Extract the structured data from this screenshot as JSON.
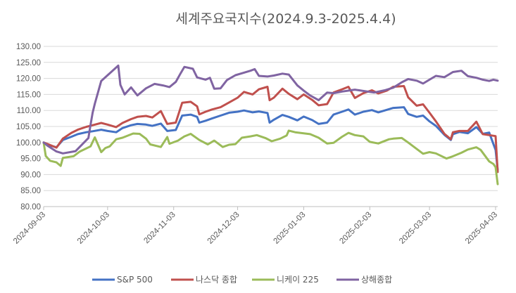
{
  "chart_data": {
    "type": "line",
    "title": "세계주요국지수(2024.9.3-2025.4.4)",
    "xlabel": "",
    "ylabel": "",
    "ylim": [
      80,
      130
    ],
    "yticks": [
      "80.00",
      "85.00",
      "90.00",
      "95.00",
      "100.00",
      "105.00",
      "110.00",
      "115.00",
      "120.00",
      "125.00",
      "130.00"
    ],
    "xlim": [
      "2024-09-03",
      "2025-04-04"
    ],
    "xticks": [
      "2024-09-03",
      "2024-10-03",
      "2024-11-03",
      "2024-12-03",
      "2025-01-03",
      "2025-02-03",
      "2025-03-03",
      "2025-04-03"
    ],
    "grid": "horizontal",
    "legend": "bottom",
    "series": [
      {
        "name": "S&P 500",
        "color": "#4472C4",
        "points": [
          [
            "2024-09-03",
            100.0
          ],
          [
            "2024-09-05",
            99.2
          ],
          [
            "2024-09-09",
            98.5
          ],
          [
            "2024-09-12",
            100.8
          ],
          [
            "2024-09-16",
            101.8
          ],
          [
            "2024-09-19",
            102.6
          ],
          [
            "2024-09-23",
            103.2
          ],
          [
            "2024-09-26",
            103.5
          ],
          [
            "2024-09-30",
            104.0
          ],
          [
            "2024-10-03",
            103.6
          ],
          [
            "2024-10-07",
            103.2
          ],
          [
            "2024-10-10",
            104.5
          ],
          [
            "2024-10-14",
            105.4
          ],
          [
            "2024-10-17",
            105.8
          ],
          [
            "2024-10-21",
            105.6
          ],
          [
            "2024-10-24",
            105.2
          ],
          [
            "2024-10-28",
            105.9
          ],
          [
            "2024-10-31",
            103.6
          ],
          [
            "2024-11-04",
            103.9
          ],
          [
            "2024-11-07",
            108.4
          ],
          [
            "2024-11-11",
            108.7
          ],
          [
            "2024-11-14",
            108.0
          ],
          [
            "2024-11-15",
            106.2
          ],
          [
            "2024-11-18",
            106.8
          ],
          [
            "2024-11-21",
            107.5
          ],
          [
            "2024-11-25",
            108.4
          ],
          [
            "2024-11-29",
            109.3
          ],
          [
            "2024-12-03",
            109.6
          ],
          [
            "2024-12-06",
            110.0
          ],
          [
            "2024-12-10",
            109.4
          ],
          [
            "2024-12-13",
            109.7
          ],
          [
            "2024-12-17",
            109.2
          ],
          [
            "2024-12-18",
            106.2
          ],
          [
            "2024-12-20",
            107.1
          ],
          [
            "2024-12-24",
            108.6
          ],
          [
            "2024-12-27",
            108.0
          ],
          [
            "2024-12-31",
            106.9
          ],
          [
            "2025-01-03",
            108.1
          ],
          [
            "2025-01-07",
            107.0
          ],
          [
            "2025-01-10",
            105.8
          ],
          [
            "2025-01-14",
            106.2
          ],
          [
            "2025-01-17",
            108.7
          ],
          [
            "2025-01-21",
            109.6
          ],
          [
            "2025-01-24",
            110.3
          ],
          [
            "2025-01-27",
            108.7
          ],
          [
            "2025-01-31",
            109.6
          ],
          [
            "2025-02-04",
            110.1
          ],
          [
            "2025-02-07",
            109.4
          ],
          [
            "2025-02-11",
            110.2
          ],
          [
            "2025-02-14",
            110.8
          ],
          [
            "2025-02-19",
            111.0
          ],
          [
            "2025-02-21",
            108.9
          ],
          [
            "2025-02-25",
            108.0
          ],
          [
            "2025-02-28",
            108.4
          ],
          [
            "2025-03-03",
            106.6
          ],
          [
            "2025-03-06",
            105.2
          ],
          [
            "2025-03-10",
            102.4
          ],
          [
            "2025-03-13",
            100.8
          ],
          [
            "2025-03-14",
            102.6
          ],
          [
            "2025-03-17",
            103.3
          ],
          [
            "2025-03-21",
            102.9
          ],
          [
            "2025-03-25",
            104.8
          ],
          [
            "2025-03-28",
            102.7
          ],
          [
            "2025-03-31",
            103.1
          ],
          [
            "2025-04-03",
            97.7
          ],
          [
            "2025-04-04",
            91.4
          ]
        ]
      },
      {
        "name": "나스닥 종합",
        "color": "#C0504D",
        "points": [
          [
            "2024-09-03",
            100.0
          ],
          [
            "2024-09-05",
            99.5
          ],
          [
            "2024-09-09",
            98.4
          ],
          [
            "2024-09-12",
            101.2
          ],
          [
            "2024-09-16",
            103.0
          ],
          [
            "2024-09-19",
            104.0
          ],
          [
            "2024-09-23",
            104.9
          ],
          [
            "2024-09-26",
            105.4
          ],
          [
            "2024-09-30",
            106.1
          ],
          [
            "2024-10-03",
            105.6
          ],
          [
            "2024-10-07",
            104.8
          ],
          [
            "2024-10-10",
            106.1
          ],
          [
            "2024-10-14",
            107.3
          ],
          [
            "2024-10-17",
            108.0
          ],
          [
            "2024-10-21",
            108.3
          ],
          [
            "2024-10-24",
            107.8
          ],
          [
            "2024-10-28",
            109.8
          ],
          [
            "2024-10-31",
            105.8
          ],
          [
            "2024-11-04",
            106.2
          ],
          [
            "2024-11-07",
            112.4
          ],
          [
            "2024-11-11",
            112.7
          ],
          [
            "2024-11-14",
            111.3
          ],
          [
            "2024-11-15",
            108.8
          ],
          [
            "2024-11-18",
            109.6
          ],
          [
            "2024-11-21",
            110.3
          ],
          [
            "2024-11-25",
            111.0
          ],
          [
            "2024-11-29",
            112.5
          ],
          [
            "2024-12-03",
            114.0
          ],
          [
            "2024-12-06",
            115.8
          ],
          [
            "2024-12-10",
            115.0
          ],
          [
            "2024-12-13",
            116.6
          ],
          [
            "2024-12-17",
            117.4
          ],
          [
            "2024-12-18",
            113.2
          ],
          [
            "2024-12-20",
            114.0
          ],
          [
            "2024-12-24",
            116.8
          ],
          [
            "2024-12-27",
            115.2
          ],
          [
            "2024-12-31",
            113.5
          ],
          [
            "2025-01-03",
            115.0
          ],
          [
            "2025-01-07",
            113.3
          ],
          [
            "2025-01-10",
            111.6
          ],
          [
            "2025-01-14",
            112.0
          ],
          [
            "2025-01-17",
            115.6
          ],
          [
            "2025-01-21",
            116.6
          ],
          [
            "2025-01-24",
            117.4
          ],
          [
            "2025-01-27",
            113.9
          ],
          [
            "2025-01-31",
            115.4
          ],
          [
            "2025-02-04",
            116.3
          ],
          [
            "2025-02-07",
            115.3
          ],
          [
            "2025-02-11",
            116.2
          ],
          [
            "2025-02-14",
            117.4
          ],
          [
            "2025-02-19",
            117.6
          ],
          [
            "2025-02-21",
            114.1
          ],
          [
            "2025-02-25",
            111.5
          ],
          [
            "2025-02-28",
            111.9
          ],
          [
            "2025-03-03",
            109.3
          ],
          [
            "2025-03-06",
            106.6
          ],
          [
            "2025-03-10",
            102.7
          ],
          [
            "2025-03-13",
            101.0
          ],
          [
            "2025-03-14",
            103.2
          ],
          [
            "2025-03-17",
            103.6
          ],
          [
            "2025-03-21",
            103.6
          ],
          [
            "2025-03-25",
            106.5
          ],
          [
            "2025-03-28",
            102.6
          ],
          [
            "2025-03-31",
            102.3
          ],
          [
            "2025-04-03",
            102.0
          ],
          [
            "2025-04-04",
            90.8
          ]
        ]
      },
      {
        "name": "니케이 225",
        "color": "#9BBB59",
        "points": [
          [
            "2024-09-03",
            100.0
          ],
          [
            "2024-09-04",
            95.8
          ],
          [
            "2024-09-06",
            94.3
          ],
          [
            "2024-09-09",
            93.8
          ],
          [
            "2024-09-11",
            92.7
          ],
          [
            "2024-09-12",
            95.2
          ],
          [
            "2024-09-17",
            95.7
          ],
          [
            "2024-09-20",
            97.2
          ],
          [
            "2024-09-25",
            98.8
          ],
          [
            "2024-09-27",
            101.6
          ],
          [
            "2024-09-30",
            97.0
          ],
          [
            "2024-10-02",
            98.3
          ],
          [
            "2024-10-04",
            98.8
          ],
          [
            "2024-10-07",
            101.0
          ],
          [
            "2024-10-10",
            101.5
          ],
          [
            "2024-10-15",
            102.8
          ],
          [
            "2024-10-18",
            102.7
          ],
          [
            "2024-10-21",
            101.2
          ],
          [
            "2024-10-23",
            99.4
          ],
          [
            "2024-10-28",
            98.6
          ],
          [
            "2024-10-31",
            101.7
          ],
          [
            "2024-11-01",
            99.6
          ],
          [
            "2024-11-05",
            100.6
          ],
          [
            "2024-11-08",
            101.9
          ],
          [
            "2024-11-11",
            102.7
          ],
          [
            "2024-11-15",
            100.8
          ],
          [
            "2024-11-19",
            99.4
          ],
          [
            "2024-11-22",
            100.6
          ],
          [
            "2024-11-26",
            98.6
          ],
          [
            "2024-11-29",
            99.3
          ],
          [
            "2024-12-02",
            99.5
          ],
          [
            "2024-12-05",
            101.5
          ],
          [
            "2024-12-09",
            101.9
          ],
          [
            "2024-12-12",
            102.3
          ],
          [
            "2024-12-16",
            101.4
          ],
          [
            "2024-12-19",
            100.4
          ],
          [
            "2024-12-23",
            101.2
          ],
          [
            "2024-12-26",
            102.2
          ],
          [
            "2024-12-27",
            103.7
          ],
          [
            "2024-12-30",
            103.2
          ],
          [
            "2025-01-06",
            102.6
          ],
          [
            "2025-01-10",
            101.5
          ],
          [
            "2025-01-14",
            99.7
          ],
          [
            "2025-01-17",
            99.9
          ],
          [
            "2025-01-21",
            101.8
          ],
          [
            "2025-01-24",
            103.0
          ],
          [
            "2025-01-27",
            102.3
          ],
          [
            "2025-01-31",
            101.9
          ],
          [
            "2025-02-03",
            100.2
          ],
          [
            "2025-02-07",
            99.7
          ],
          [
            "2025-02-12",
            101.0
          ],
          [
            "2025-02-14",
            101.2
          ],
          [
            "2025-02-18",
            101.4
          ],
          [
            "2025-02-21",
            100.0
          ],
          [
            "2025-02-25",
            98.0
          ],
          [
            "2025-02-28",
            96.5
          ],
          [
            "2025-03-03",
            97.0
          ],
          [
            "2025-03-06",
            96.6
          ],
          [
            "2025-03-11",
            95.0
          ],
          [
            "2025-03-14",
            95.7
          ],
          [
            "2025-03-18",
            96.8
          ],
          [
            "2025-03-21",
            97.8
          ],
          [
            "2025-03-25",
            98.5
          ],
          [
            "2025-03-27",
            97.7
          ],
          [
            "2025-03-31",
            94.1
          ],
          [
            "2025-04-02",
            93.3
          ],
          [
            "2025-04-03",
            92.3
          ],
          [
            "2025-04-04",
            87.0
          ]
        ]
      },
      {
        "name": "상해종합",
        "color": "#8064A2",
        "points": [
          [
            "2024-09-03",
            100.0
          ],
          [
            "2024-09-05",
            98.9
          ],
          [
            "2024-09-09",
            97.2
          ],
          [
            "2024-09-12",
            96.6
          ],
          [
            "2024-09-18",
            97.3
          ],
          [
            "2024-09-24",
            101.4
          ],
          [
            "2024-09-25",
            105.5
          ],
          [
            "2024-09-26",
            109.3
          ],
          [
            "2024-09-27",
            112.1
          ],
          [
            "2024-09-30",
            119.2
          ],
          [
            "2024-10-08",
            124.0
          ],
          [
            "2024-10-09",
            118.0
          ],
          [
            "2024-10-11",
            115.0
          ],
          [
            "2024-10-14",
            117.2
          ],
          [
            "2024-10-17",
            114.7
          ],
          [
            "2024-10-21",
            116.9
          ],
          [
            "2024-10-25",
            118.3
          ],
          [
            "2024-10-29",
            117.8
          ],
          [
            "2024-11-01",
            117.3
          ],
          [
            "2024-11-04",
            118.9
          ],
          [
            "2024-11-06",
            121.3
          ],
          [
            "2024-11-08",
            123.6
          ],
          [
            "2024-11-12",
            123.0
          ],
          [
            "2024-11-14",
            120.3
          ],
          [
            "2024-11-18",
            119.6
          ],
          [
            "2024-11-20",
            120.2
          ],
          [
            "2024-11-22",
            116.8
          ],
          [
            "2024-11-25",
            116.9
          ],
          [
            "2024-11-28",
            119.5
          ],
          [
            "2024-12-02",
            121.0
          ],
          [
            "2024-12-05",
            121.6
          ],
          [
            "2024-12-09",
            122.4
          ],
          [
            "2024-12-11",
            122.9
          ],
          [
            "2024-12-13",
            120.8
          ],
          [
            "2024-12-17",
            120.6
          ],
          [
            "2024-12-20",
            120.9
          ],
          [
            "2024-12-24",
            121.5
          ],
          [
            "2024-12-27",
            121.2
          ],
          [
            "2024-12-31",
            117.8
          ],
          [
            "2025-01-03",
            116.2
          ],
          [
            "2025-01-06",
            114.7
          ],
          [
            "2025-01-10",
            113.2
          ],
          [
            "2025-01-14",
            115.6
          ],
          [
            "2025-01-17",
            115.4
          ],
          [
            "2025-01-21",
            115.9
          ],
          [
            "2025-01-27",
            116.5
          ],
          [
            "2025-02-05",
            115.6
          ],
          [
            "2025-02-10",
            116.3
          ],
          [
            "2025-02-14",
            117.1
          ],
          [
            "2025-02-18",
            118.8
          ],
          [
            "2025-02-21",
            119.8
          ],
          [
            "2025-02-25",
            119.3
          ],
          [
            "2025-02-28",
            118.4
          ],
          [
            "2025-03-03",
            119.6
          ],
          [
            "2025-03-06",
            120.8
          ],
          [
            "2025-03-10",
            120.4
          ],
          [
            "2025-03-14",
            122.0
          ],
          [
            "2025-03-18",
            122.4
          ],
          [
            "2025-03-21",
            120.7
          ],
          [
            "2025-03-25",
            120.2
          ],
          [
            "2025-03-28",
            119.6
          ],
          [
            "2025-03-31",
            119.2
          ],
          [
            "2025-04-02",
            119.6
          ],
          [
            "2025-04-04",
            119.3
          ]
        ]
      }
    ]
  }
}
